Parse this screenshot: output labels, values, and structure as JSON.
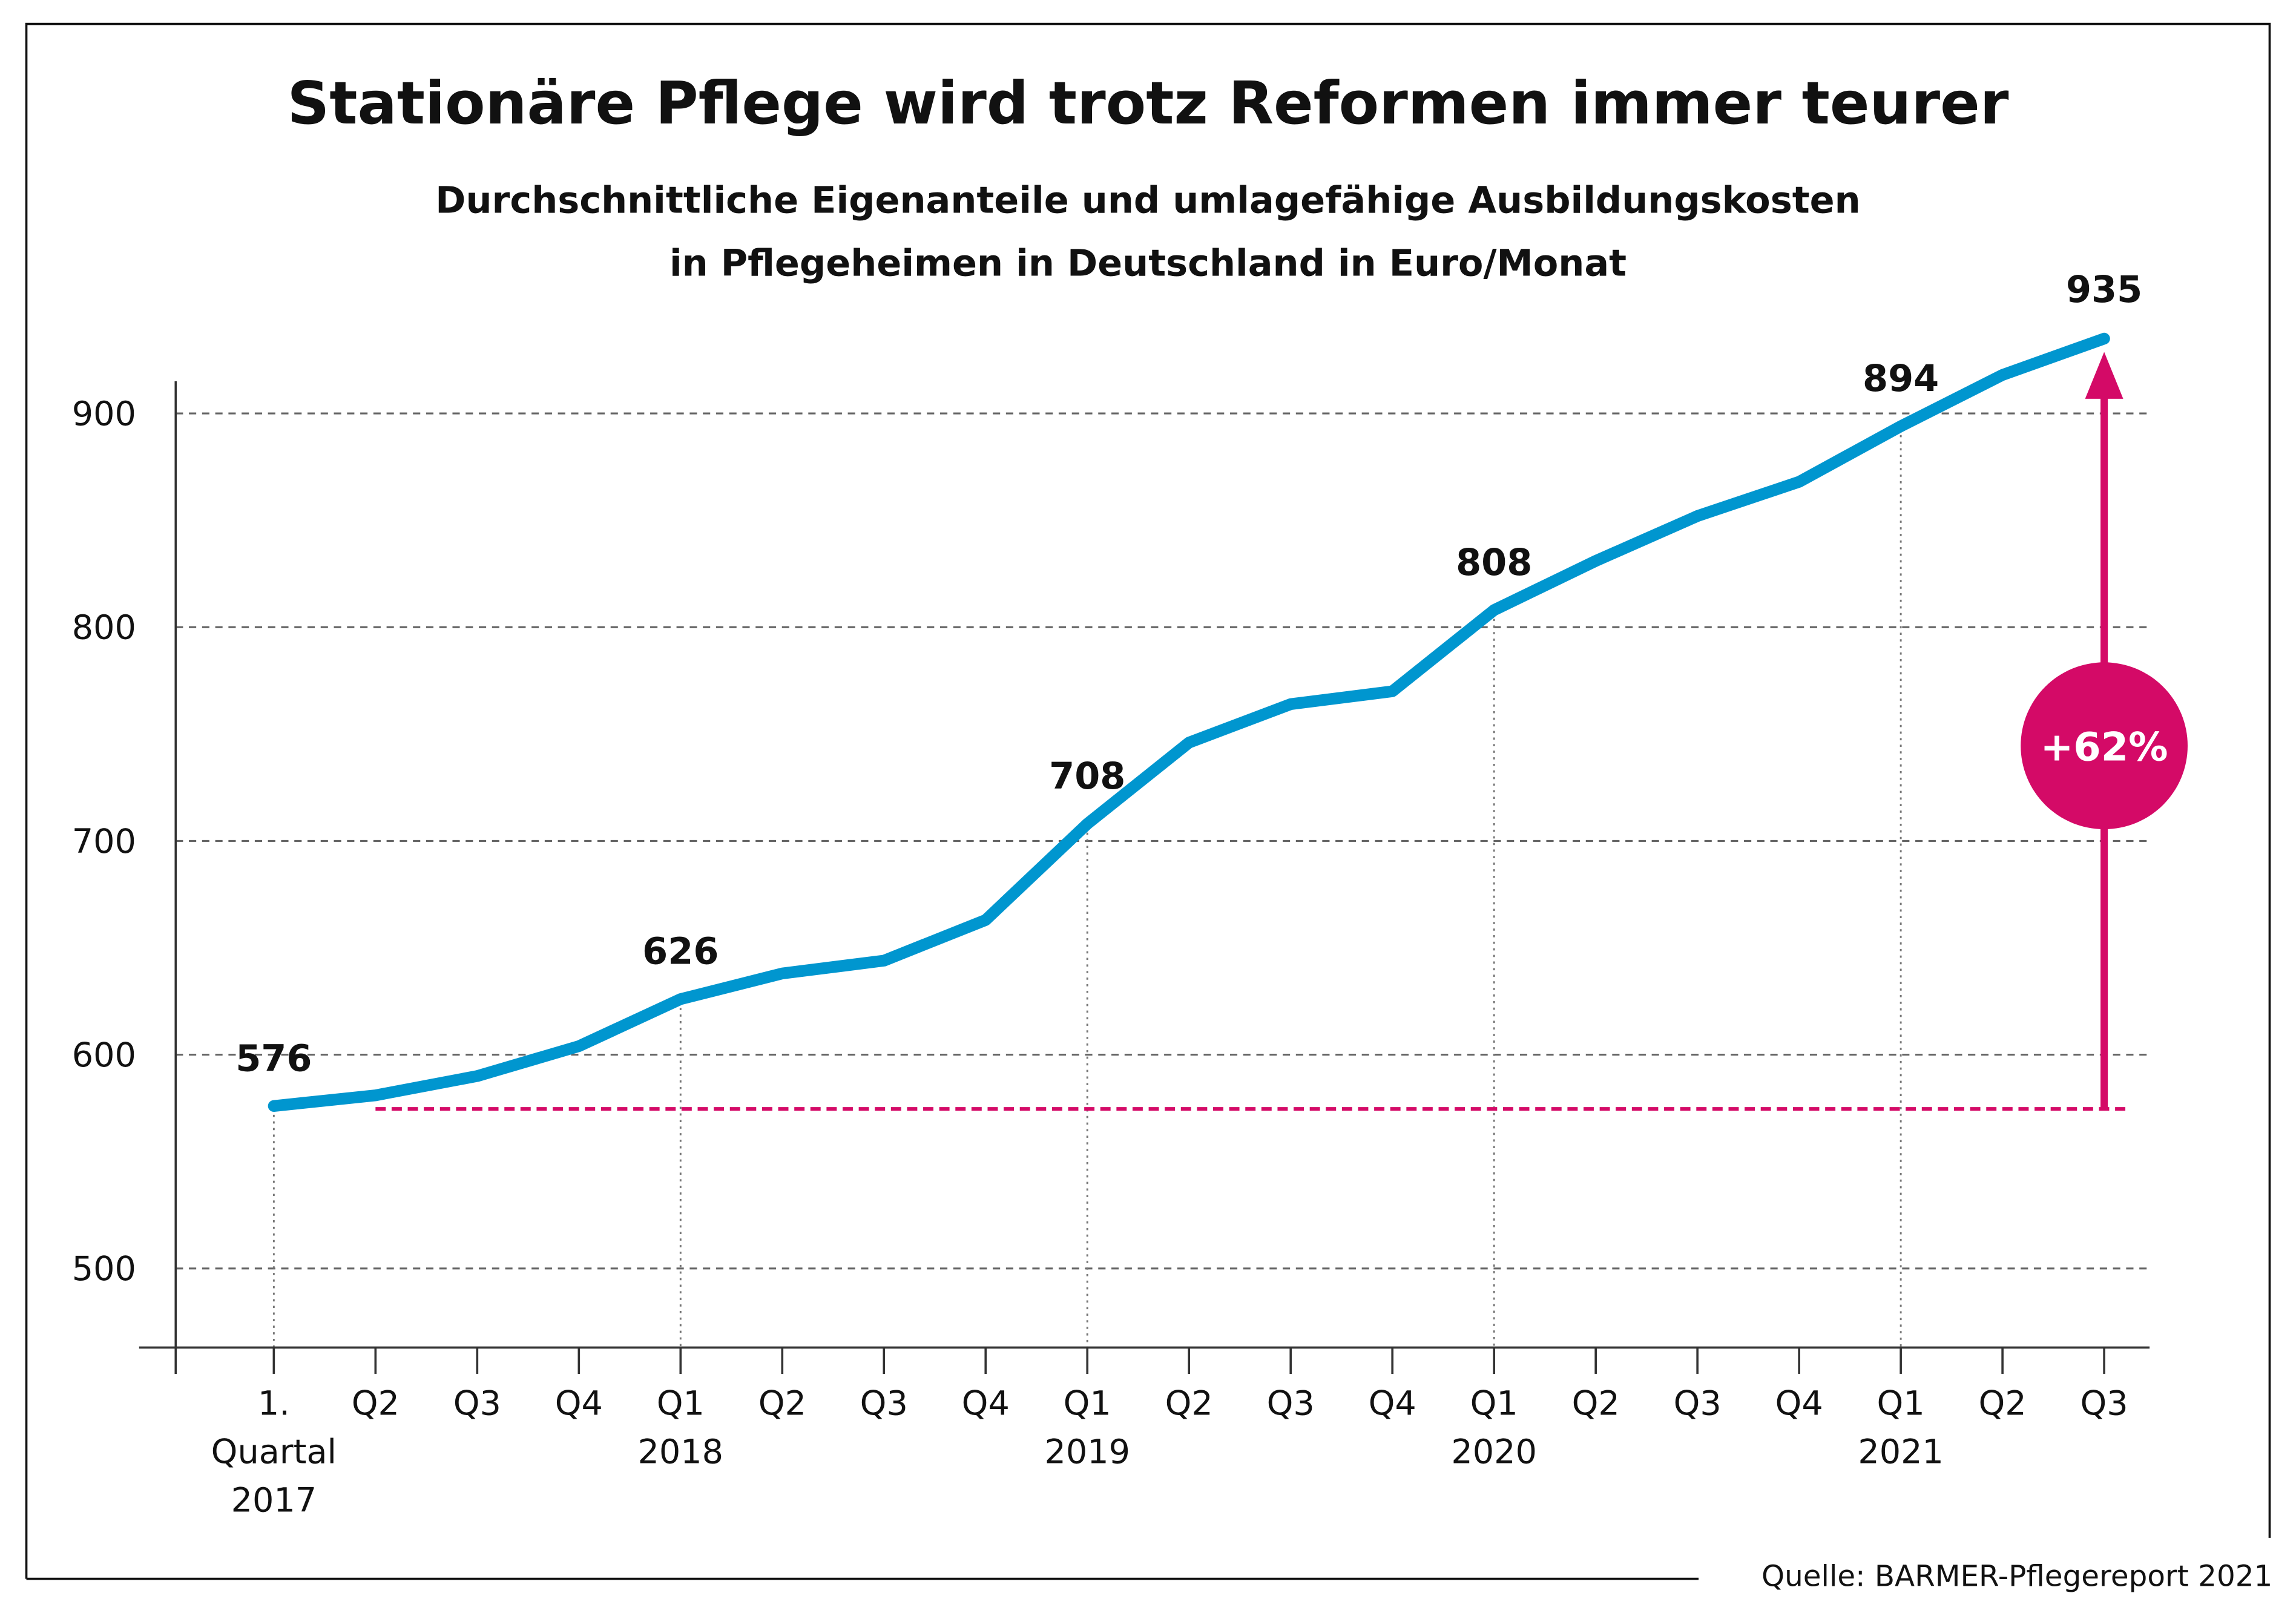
{
  "chart_data": {
    "type": "line",
    "title": "Stationäre Pflege wird trotz Reformen immer teurer",
    "subtitle": [
      "Durchschnittliche Eigenanteile und umlagefähige Ausbildungskosten",
      "in Pflegeheimen in Deutschland in Euro/Monat"
    ],
    "categories": [
      [
        "1.",
        "Quartal",
        "2017"
      ],
      [
        "Q2"
      ],
      [
        "Q3"
      ],
      [
        "Q4"
      ],
      [
        "Q1",
        "2018"
      ],
      [
        "Q2"
      ],
      [
        "Q3"
      ],
      [
        "Q4"
      ],
      [
        "Q1",
        "2019"
      ],
      [
        "Q2"
      ],
      [
        "Q3"
      ],
      [
        "Q4"
      ],
      [
        "Q1",
        "2020"
      ],
      [
        "Q2"
      ],
      [
        "Q3"
      ],
      [
        "Q4"
      ],
      [
        "Q1",
        "2021"
      ],
      [
        "Q2"
      ],
      [
        "Q3"
      ]
    ],
    "values": [
      576,
      581,
      590,
      604,
      626,
      638,
      644,
      663,
      708,
      746,
      764,
      770,
      808,
      831,
      852,
      868,
      894,
      918,
      935
    ],
    "data_labels": {
      "0": "576",
      "4": "626",
      "8": "708",
      "12": "808",
      "16": "894",
      "18": "935"
    },
    "yticks": [
      500,
      600,
      700,
      800,
      900
    ],
    "ylim": [
      460,
      975
    ],
    "grid": "horizontal dashed",
    "line_color": "#0096cf",
    "accent_color": "#d40a67",
    "baseline_value": 576,
    "annotation": "+62%",
    "xlabel": "",
    "ylabel": ""
  },
  "source": "Quelle: BARMER-Pflegereport 2021"
}
